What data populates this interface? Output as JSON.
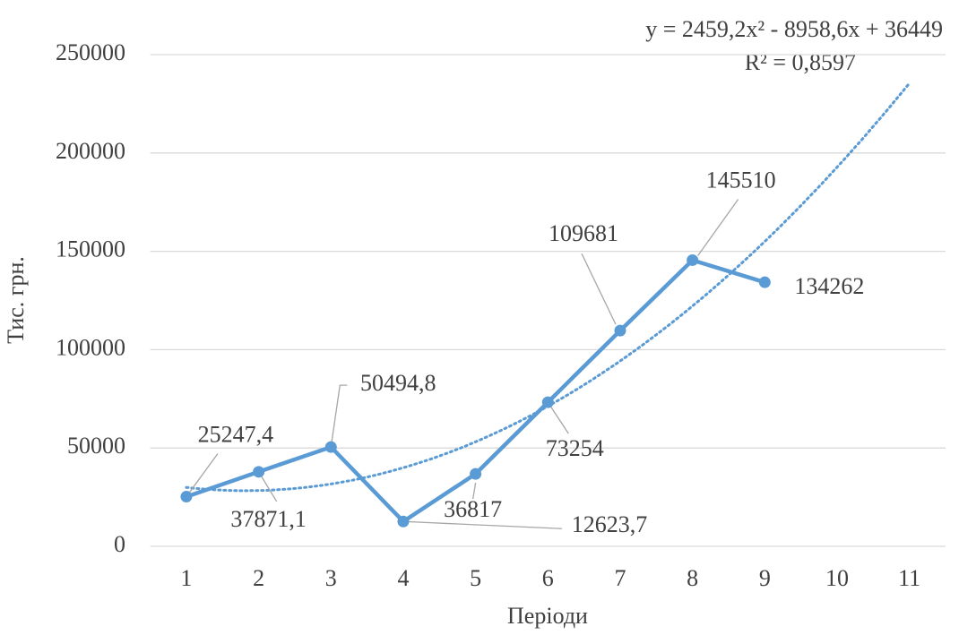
{
  "chart_data": {
    "type": "line",
    "x_label": "Періоди",
    "y_label": "Тис. грн.",
    "x": [
      1,
      2,
      3,
      4,
      5,
      6,
      7,
      8,
      9
    ],
    "values": [
      25247.4,
      37871.1,
      50494.8,
      12623.7,
      36817,
      73254,
      109681,
      145510,
      134262
    ],
    "value_labels": [
      "25247,4",
      "37871,1",
      "50494,8",
      "12623,7",
      "36817",
      "73254",
      "109681",
      "145510",
      "134262"
    ],
    "color": "#5b9bd5",
    "xlim": [
      0.5,
      11.5
    ],
    "xticks": [
      1,
      2,
      3,
      4,
      5,
      6,
      7,
      8,
      9,
      10,
      11
    ],
    "ylim": [
      0,
      250000
    ],
    "yticks": [
      0,
      50000,
      100000,
      150000,
      200000,
      250000
    ],
    "grid": true,
    "trendline": {
      "type": "polynomial",
      "equation": "y = 2459,2x² - 8958,6x + 36449",
      "r2_label": "R² = 0,8597",
      "coefficients": [
        2459.2,
        -8958.6,
        36449
      ],
      "xlim": [
        1,
        11
      ],
      "color": "#5b9bd5",
      "style": "dotted"
    }
  }
}
